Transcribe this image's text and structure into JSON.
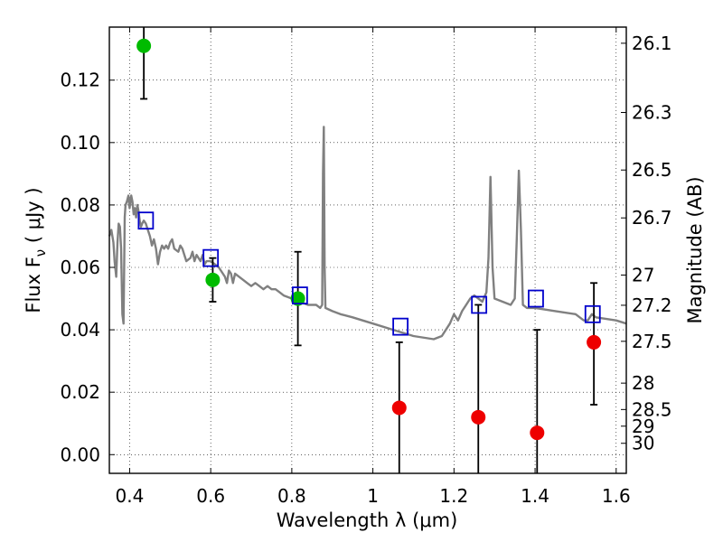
{
  "chart_data": {
    "type": "scatter",
    "xlabel": "Wavelength  λ (μm)",
    "ylabel": "Flux  F",
    "ylabel_subscript": "ν",
    "ylabel_unit": "  ( μJy )",
    "y2label": "Magnitude (AB)",
    "xlim": [
      0.35,
      1.625
    ],
    "ylim": [
      -0.006,
      0.137
    ],
    "grid": true,
    "x_ticks": [
      0.4,
      0.6,
      0.8,
      1.0,
      1.2,
      1.4,
      1.6
    ],
    "x_tick_labels": [
      "0.4",
      "0.6",
      "0.8",
      "1",
      "1.2",
      "1.4",
      "1.6"
    ],
    "y_ticks": [
      0.0,
      0.02,
      0.04,
      0.06,
      0.08,
      0.1,
      0.12
    ],
    "y_tick_labels": [
      "0.00",
      "0.02",
      "0.04",
      "0.06",
      "0.08",
      "0.10",
      "0.12"
    ],
    "mag_ticks": [
      {
        "mag": 26.1,
        "label": "26.1"
      },
      {
        "mag": 26.3,
        "label": "26.3"
      },
      {
        "mag": 26.5,
        "label": "26.5"
      },
      {
        "mag": 26.7,
        "label": "26.7"
      },
      {
        "mag": 27.0,
        "label": "27"
      },
      {
        "mag": 27.2,
        "label": "27.2"
      },
      {
        "mag": 27.5,
        "label": "27.5"
      },
      {
        "mag": 28.0,
        "label": "28"
      },
      {
        "mag": 28.5,
        "label": "28.5"
      },
      {
        "mag": 29.0,
        "label": "29"
      },
      {
        "mag": 30.0,
        "label": "30"
      }
    ],
    "template_spectrum": {
      "color": "#808080",
      "x": [
        0.35,
        0.355,
        0.36,
        0.363,
        0.367,
        0.37,
        0.373,
        0.376,
        0.379,
        0.382,
        0.385,
        0.388,
        0.39,
        0.393,
        0.397,
        0.4,
        0.404,
        0.407,
        0.41,
        0.413,
        0.416,
        0.419,
        0.422,
        0.425,
        0.428,
        0.431,
        0.435,
        0.44,
        0.445,
        0.45,
        0.455,
        0.46,
        0.465,
        0.47,
        0.475,
        0.48,
        0.485,
        0.49,
        0.495,
        0.5,
        0.505,
        0.51,
        0.52,
        0.525,
        0.53,
        0.535,
        0.54,
        0.55,
        0.555,
        0.56,
        0.565,
        0.57,
        0.575,
        0.58,
        0.585,
        0.59,
        0.6,
        0.61,
        0.62,
        0.63,
        0.635,
        0.64,
        0.645,
        0.65,
        0.655,
        0.66,
        0.67,
        0.68,
        0.69,
        0.7,
        0.71,
        0.72,
        0.73,
        0.74,
        0.75,
        0.76,
        0.77,
        0.78,
        0.8,
        0.82,
        0.84,
        0.86,
        0.87,
        0.875,
        0.877,
        0.879,
        0.881,
        0.883,
        0.9,
        0.92,
        0.95,
        1.0,
        1.05,
        1.1,
        1.15,
        1.17,
        1.19,
        1.2,
        1.21,
        1.22,
        1.23,
        1.24,
        1.25,
        1.26,
        1.27,
        1.28,
        1.285,
        1.29,
        1.295,
        1.3,
        1.32,
        1.34,
        1.35,
        1.355,
        1.36,
        1.365,
        1.37,
        1.38,
        1.39,
        1.4,
        1.45,
        1.5,
        1.52,
        1.53,
        1.54,
        1.55,
        1.6,
        1.625
      ],
      "y": [
        0.07,
        0.072,
        0.068,
        0.062,
        0.057,
        0.068,
        0.074,
        0.073,
        0.066,
        0.045,
        0.042,
        0.076,
        0.08,
        0.081,
        0.083,
        0.079,
        0.083,
        0.081,
        0.077,
        0.079,
        0.076,
        0.08,
        0.078,
        0.075,
        0.073,
        0.074,
        0.075,
        0.074,
        0.072,
        0.07,
        0.067,
        0.069,
        0.066,
        0.061,
        0.065,
        0.067,
        0.066,
        0.067,
        0.066,
        0.068,
        0.069,
        0.066,
        0.065,
        0.067,
        0.066,
        0.064,
        0.062,
        0.063,
        0.065,
        0.062,
        0.064,
        0.063,
        0.062,
        0.064,
        0.061,
        0.062,
        0.062,
        0.061,
        0.06,
        0.058,
        0.057,
        0.055,
        0.059,
        0.058,
        0.055,
        0.058,
        0.057,
        0.056,
        0.055,
        0.054,
        0.055,
        0.054,
        0.053,
        0.054,
        0.053,
        0.053,
        0.052,
        0.051,
        0.05,
        0.049,
        0.048,
        0.048,
        0.047,
        0.048,
        0.09,
        0.105,
        0.06,
        0.047,
        0.046,
        0.045,
        0.044,
        0.042,
        0.04,
        0.038,
        0.037,
        0.038,
        0.042,
        0.045,
        0.043,
        0.046,
        0.048,
        0.05,
        0.051,
        0.05,
        0.049,
        0.052,
        0.063,
        0.089,
        0.06,
        0.05,
        0.049,
        0.048,
        0.05,
        0.07,
        0.091,
        0.072,
        0.048,
        0.047,
        0.047,
        0.047,
        0.046,
        0.045,
        0.043,
        0.043,
        0.045,
        0.044,
        0.043,
        0.042
      ]
    },
    "series": [
      {
        "marker": "circle",
        "color": "#00bb00",
        "x": [
          0.435,
          0.605,
          0.815
        ],
        "y": [
          0.131,
          0.056,
          0.05
        ],
        "yerr_low": [
          0.114,
          0.049,
          0.035
        ],
        "yerr_high": [
          0.137,
          0.063,
          0.065
        ]
      },
      {
        "marker": "circle",
        "color": "#ee0000",
        "x": [
          1.065,
          1.26,
          1.405,
          1.545
        ],
        "y": [
          0.015,
          0.012,
          0.007,
          0.036
        ],
        "yerr_low": [
          -0.006,
          -0.006,
          -0.006,
          0.016
        ],
        "yerr_high": [
          0.036,
          0.048,
          0.04,
          0.055
        ]
      },
      {
        "marker": "square-open",
        "color": "#0000cc",
        "x": [
          0.44,
          0.6,
          0.82,
          1.068,
          1.262,
          1.402,
          1.542
        ],
        "y": [
          0.075,
          0.063,
          0.051,
          0.041,
          0.048,
          0.05,
          0.045
        ]
      }
    ]
  }
}
